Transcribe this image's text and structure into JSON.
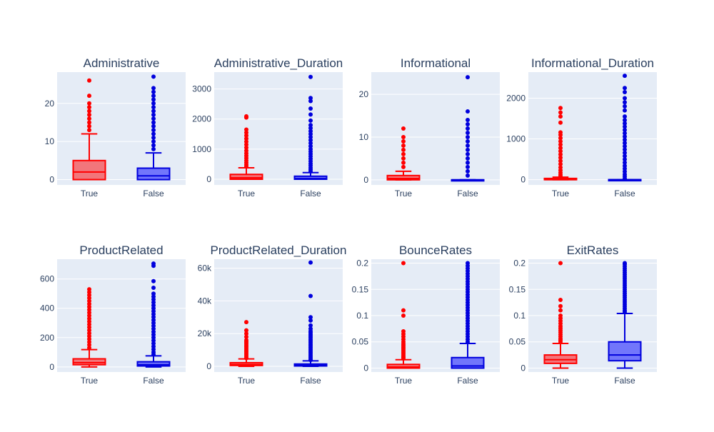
{
  "colors": {
    "plot_bg": "#e5ecf6",
    "true_line": "#ff0000",
    "true_fill": "rgba(255,0,0,0.5)",
    "false_line": "#0000dd",
    "false_fill": "rgba(0,0,255,0.5)"
  },
  "chart_data": [
    {
      "type": "box",
      "title": "Administrative",
      "categories": [
        "True",
        "False"
      ],
      "ylim": [
        -1.4,
        28.2
      ],
      "yticks": [
        0,
        10,
        20
      ],
      "ytick_labels": [
        "0",
        "10",
        "20"
      ],
      "boxes": [
        {
          "category": "True",
          "min": 0,
          "q1": 0,
          "median": 2,
          "q3": 5,
          "max": 12,
          "outliers": [
            13,
            14,
            15,
            16,
            17,
            18,
            19,
            20,
            22,
            26
          ]
        },
        {
          "category": "False",
          "min": 0,
          "q1": 0,
          "median": 1,
          "q3": 3,
          "max": 7,
          "outliers": [
            8,
            9,
            10,
            11,
            12,
            13,
            14,
            15,
            16,
            17,
            18,
            19,
            20,
            21,
            22,
            23,
            24,
            27
          ]
        }
      ]
    },
    {
      "type": "box",
      "title": "Administrative_Duration",
      "categories": [
        "True",
        "False"
      ],
      "ylim": [
        -190,
        3560
      ],
      "yticks": [
        0,
        1000,
        2000,
        3000
      ],
      "ytick_labels": [
        "0",
        "1000",
        "2000",
        "3000"
      ],
      "boxes": [
        {
          "category": "True",
          "min": 0,
          "q1": 0,
          "median": 50,
          "q3": 160,
          "max": 380,
          "outliers": [
            420,
            480,
            550,
            620,
            700,
            780,
            860,
            950,
            1050,
            1150,
            1250,
            1350,
            1450,
            1550,
            1650,
            2050,
            2090
          ]
        },
        {
          "category": "False",
          "min": 0,
          "q1": 0,
          "median": 20,
          "q3": 100,
          "max": 220,
          "outliers": [
            260,
            320,
            380,
            450,
            520,
            600,
            680,
            760,
            840,
            920,
            1000,
            1100,
            1200,
            1300,
            1400,
            1500,
            1600,
            1700,
            1800,
            1950,
            2150,
            2350,
            2600,
            2700,
            3400
          ]
        }
      ]
    },
    {
      "type": "box",
      "title": "Informational",
      "categories": [
        "True",
        "False"
      ],
      "ylim": [
        -1.2,
        25.2
      ],
      "yticks": [
        0,
        10,
        20
      ],
      "ytick_labels": [
        "0",
        "10",
        "20"
      ],
      "boxes": [
        {
          "category": "True",
          "min": 0,
          "q1": 0,
          "median": 0.3,
          "q3": 1,
          "max": 2,
          "outliers": [
            3,
            4,
            5,
            6,
            7,
            8,
            9,
            10,
            12
          ]
        },
        {
          "category": "False",
          "min": 0,
          "q1": 0,
          "median": 0,
          "q3": 0,
          "max": 0,
          "outliers": [
            1,
            2,
            3,
            4,
            5,
            6,
            7,
            8,
            9,
            10,
            11,
            12,
            13,
            14,
            16,
            24
          ]
        }
      ]
    },
    {
      "type": "box",
      "title": "Informational_Duration",
      "categories": [
        "True",
        "False"
      ],
      "ylim": [
        -130,
        2640
      ],
      "yticks": [
        0,
        1000,
        2000
      ],
      "ytick_labels": [
        "0",
        "1000",
        "2000"
      ],
      "boxes": [
        {
          "category": "True",
          "min": 0,
          "q1": 0,
          "median": 0,
          "q3": 30,
          "max": 60,
          "outliers": [
            80,
            120,
            170,
            230,
            300,
            380,
            460,
            540,
            620,
            700,
            780,
            860,
            940,
            1020,
            1100,
            1160,
            1400,
            1550,
            1650,
            1760
          ]
        },
        {
          "category": "False",
          "min": 0,
          "q1": 0,
          "median": 0,
          "q3": 0,
          "max": 0,
          "outliers": [
            30,
            80,
            130,
            200,
            270,
            340,
            420,
            500,
            580,
            660,
            740,
            820,
            900,
            980,
            1060,
            1140,
            1220,
            1300,
            1380,
            1460,
            1550,
            1700,
            1800,
            1900,
            2000,
            2150,
            2250,
            2550
          ]
        }
      ]
    },
    {
      "type": "box",
      "title": "ProductRelated",
      "categories": [
        "True",
        "False"
      ],
      "ylim": [
        -35,
        735
      ],
      "yticks": [
        0,
        200,
        400,
        600
      ],
      "ytick_labels": [
        "0",
        "200",
        "400",
        "600"
      ],
      "boxes": [
        {
          "category": "True",
          "min": 0,
          "q1": 15,
          "median": 29,
          "q3": 55,
          "max": 118,
          "outliers": [
            130,
            150,
            170,
            190,
            210,
            230,
            250,
            270,
            290,
            310,
            330,
            350,
            370,
            390,
            410,
            430,
            450,
            470,
            490,
            510,
            530
          ]
        },
        {
          "category": "False",
          "min": 0,
          "q1": 6,
          "median": 15,
          "q3": 35,
          "max": 75,
          "outliers": [
            85,
            100,
            120,
            140,
            160,
            180,
            200,
            220,
            240,
            260,
            280,
            300,
            320,
            340,
            360,
            380,
            400,
            420,
            440,
            460,
            480,
            500,
            540,
            585,
            690,
            705
          ]
        }
      ]
    },
    {
      "type": "box",
      "title": "ProductRelated_Duration",
      "categories": [
        "True",
        "False"
      ],
      "ylim": [
        -3500,
        65500
      ],
      "yticks": [
        0,
        20000,
        40000,
        60000
      ],
      "ytick_labels": [
        "0",
        "20k",
        "40k",
        "60k"
      ],
      "boxes": [
        {
          "category": "True",
          "min": 0,
          "q1": 500,
          "median": 1100,
          "q3": 2200,
          "max": 4500,
          "outliers": [
            5000,
            6000,
            7000,
            8000,
            9000,
            10000,
            11000,
            12000,
            13000,
            14000,
            15000,
            16000,
            18000,
            20000,
            22000,
            27000
          ]
        },
        {
          "category": "False",
          "min": 0,
          "q1": 200,
          "median": 600,
          "q3": 1400,
          "max": 3300,
          "outliers": [
            3800,
            4500,
            5500,
            6500,
            7500,
            8500,
            9500,
            10500,
            11500,
            12500,
            13500,
            14500,
            15500,
            16500,
            17500,
            18500,
            19500,
            20500,
            21500,
            23000,
            25000,
            28000,
            30000,
            43000,
            63500
          ]
        }
      ]
    },
    {
      "type": "box",
      "title": "BounceRates",
      "categories": [
        "True",
        "False"
      ],
      "ylim": [
        -0.0075,
        0.2075
      ],
      "yticks": [
        0,
        0.05,
        0.1,
        0.15,
        0.2
      ],
      "ytick_labels": [
        "0",
        "0.05",
        "0.1",
        "0.15",
        "0.2"
      ],
      "boxes": [
        {
          "category": "True",
          "min": 0,
          "q1": 0,
          "median": 0.002,
          "q3": 0.007,
          "max": 0.016,
          "outliers": [
            0.018,
            0.02,
            0.022,
            0.025,
            0.028,
            0.031,
            0.034,
            0.037,
            0.04,
            0.043,
            0.046,
            0.05,
            0.055,
            0.06,
            0.065,
            0.07,
            0.1,
            0.11,
            0.2
          ]
        },
        {
          "category": "False",
          "min": 0,
          "q1": 0,
          "median": 0.004,
          "q3": 0.02,
          "max": 0.047,
          "outliers": [
            0.05,
            0.055,
            0.06,
            0.065,
            0.07,
            0.075,
            0.08,
            0.085,
            0.09,
            0.095,
            0.1,
            0.105,
            0.11,
            0.115,
            0.12,
            0.125,
            0.13,
            0.135,
            0.14,
            0.145,
            0.15,
            0.155,
            0.16,
            0.165,
            0.17,
            0.175,
            0.18,
            0.185,
            0.19,
            0.195,
            0.2
          ]
        }
      ]
    },
    {
      "type": "box",
      "title": "ExitRates",
      "categories": [
        "True",
        "False"
      ],
      "ylim": [
        -0.0075,
        0.2075
      ],
      "yticks": [
        0,
        0.05,
        0.1,
        0.15,
        0.2
      ],
      "ytick_labels": [
        "0",
        "0.05",
        "0.1",
        "0.15",
        "0.2"
      ],
      "boxes": [
        {
          "category": "True",
          "min": 0,
          "q1": 0.009,
          "median": 0.016,
          "q3": 0.025,
          "max": 0.047,
          "outliers": [
            0.05,
            0.053,
            0.056,
            0.06,
            0.064,
            0.068,
            0.072,
            0.076,
            0.08,
            0.085,
            0.09,
            0.095,
            0.1,
            0.11,
            0.118,
            0.13,
            0.2
          ]
        },
        {
          "category": "False",
          "min": 0,
          "q1": 0.014,
          "median": 0.025,
          "q3": 0.05,
          "max": 0.104,
          "outliers": [
            0.107,
            0.11,
            0.114,
            0.118,
            0.122,
            0.126,
            0.13,
            0.134,
            0.138,
            0.142,
            0.146,
            0.15,
            0.154,
            0.158,
            0.162,
            0.166,
            0.17,
            0.174,
            0.178,
            0.182,
            0.186,
            0.19,
            0.194,
            0.198,
            0.2
          ]
        }
      ]
    }
  ]
}
